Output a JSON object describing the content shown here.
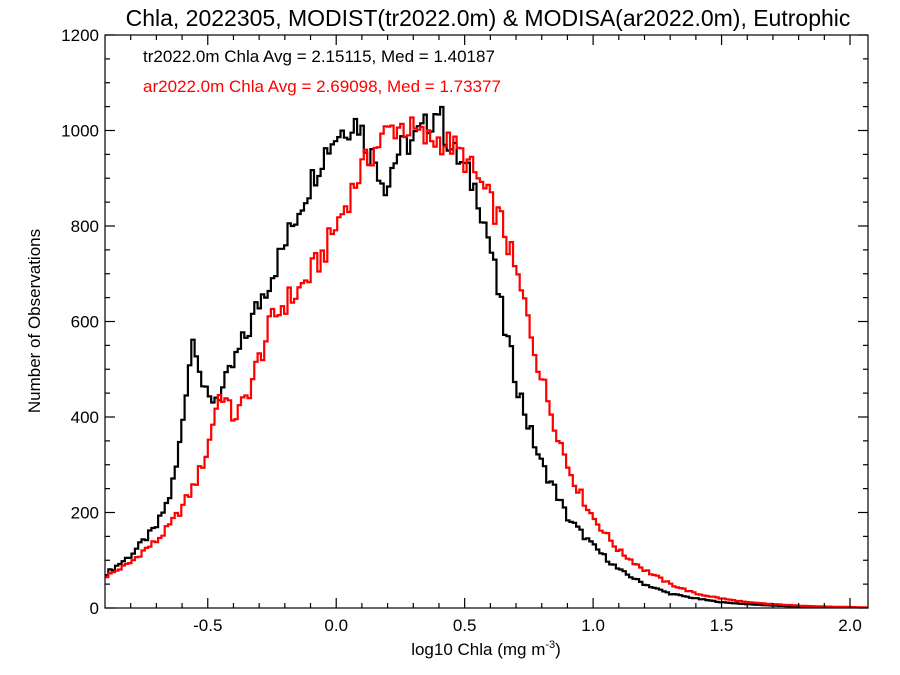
{
  "chart_data": {
    "type": "line",
    "title": "Chla, 2022305, MODIST(tr2022.0m) & MODISA(ar2022.0m), Eutrophic",
    "xlabel": "log10 Chla (mg m",
    "xlabel_sup": "-3",
    "xlabel_end": ")",
    "ylabel": "Number of Observations",
    "xlim": [
      -0.9,
      2.07
    ],
    "ylim": [
      0,
      1200
    ],
    "xticks": [
      -0.5,
      0.0,
      0.5,
      1.0,
      1.5,
      2.0
    ],
    "xtick_labels": [
      "-0.5",
      "0.0",
      "0.5",
      "1.0",
      "1.5",
      "2.0"
    ],
    "yticks": [
      0,
      200,
      400,
      600,
      800,
      1000,
      1200
    ],
    "ytick_labels": [
      "0",
      "200",
      "400",
      "600",
      "800",
      "1000",
      "1200"
    ],
    "annotations": [
      {
        "text": "tr2022.0m Chla Avg = 2.15115, Med = 1.40187",
        "color": "#000000"
      },
      {
        "text": "ar2022.0m Chla Avg = 2.69098, Med = 1.73377",
        "color": "#ff0000"
      }
    ],
    "grid": false,
    "series": [
      {
        "color": "#000000",
        "x": [
          -0.9,
          -0.8,
          -0.75,
          -0.7,
          -0.65,
          -0.62,
          -0.6,
          -0.58,
          -0.56,
          -0.55,
          -0.54,
          -0.52,
          -0.5,
          -0.48,
          -0.45,
          -0.42,
          -0.4,
          -0.35,
          -0.3,
          -0.25,
          -0.2,
          -0.15,
          -0.1,
          -0.05,
          0.0,
          0.05,
          0.08,
          0.1,
          0.12,
          0.15,
          0.18,
          0.2,
          0.22,
          0.25,
          0.3,
          0.35,
          0.38,
          0.4,
          0.42,
          0.45,
          0.5,
          0.55,
          0.6,
          0.65,
          0.7,
          0.75,
          0.8,
          0.85,
          0.9,
          1.0,
          1.1,
          1.2,
          1.3,
          1.4,
          1.5,
          1.6,
          1.7,
          1.8,
          1.9,
          2.0,
          2.07
        ],
        "y": [
          70,
          110,
          140,
          170,
          230,
          300,
          380,
          480,
          560,
          570,
          540,
          470,
          430,
          440,
          450,
          480,
          510,
          570,
          640,
          700,
          760,
          830,
          890,
          950,
          990,
          1010,
          1020,
          1000,
          960,
          940,
          900,
          880,
          930,
          960,
          980,
          1010,
          1030,
          1050,
          1000,
          960,
          920,
          870,
          760,
          600,
          480,
          380,
          300,
          250,
          190,
          130,
          80,
          50,
          30,
          20,
          12,
          8,
          5,
          3,
          2,
          1,
          0
        ]
      },
      {
        "color": "#ff0000",
        "x": [
          -0.9,
          -0.8,
          -0.75,
          -0.7,
          -0.65,
          -0.6,
          -0.55,
          -0.5,
          -0.48,
          -0.46,
          -0.44,
          -0.42,
          -0.4,
          -0.38,
          -0.35,
          -0.3,
          -0.25,
          -0.2,
          -0.15,
          -0.1,
          -0.05,
          0.0,
          0.05,
          0.1,
          0.15,
          0.2,
          0.25,
          0.3,
          0.35,
          0.4,
          0.45,
          0.5,
          0.55,
          0.6,
          0.65,
          0.7,
          0.75,
          0.8,
          0.85,
          0.9,
          0.95,
          1.0,
          1.1,
          1.2,
          1.3,
          1.4,
          1.5,
          1.6,
          1.7,
          1.8,
          1.9,
          2.0,
          2.07
        ],
        "y": [
          65,
          95,
          120,
          140,
          170,
          210,
          260,
          330,
          390,
          440,
          450,
          420,
          400,
          410,
          440,
          520,
          600,
          640,
          660,
          700,
          740,
          800,
          860,
          920,
          960,
          1000,
          1010,
          1000,
          980,
          980,
          970,
          940,
          900,
          850,
          800,
          700,
          600,
          480,
          390,
          300,
          240,
          190,
          120,
          80,
          50,
          30,
          20,
          12,
          8,
          5,
          3,
          2,
          1
        ]
      }
    ]
  }
}
